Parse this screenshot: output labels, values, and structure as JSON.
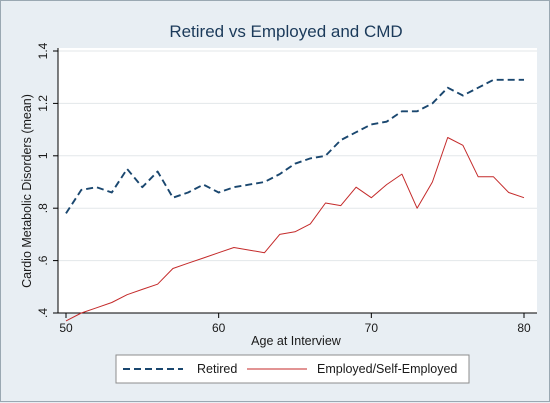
{
  "chart_data": {
    "type": "line",
    "title": "Retired vs Employed and CMD",
    "xlabel": "Age at Interview",
    "ylabel": "Cardio Metabolic Disorders (mean)",
    "xlim": [
      50,
      80
    ],
    "ylim": [
      0.4,
      1.4
    ],
    "xticks": [
      50,
      60,
      70,
      80
    ],
    "xtick_labels": [
      "50",
      "60",
      "70",
      "80"
    ],
    "yticks": [
      0.4,
      0.6,
      0.8,
      1.0,
      1.2,
      1.4
    ],
    "ytick_labels": [
      ".4",
      ".6",
      ".8",
      "1",
      "1.2",
      "1.4"
    ],
    "grid": true,
    "legend_position": "bottom",
    "x": [
      50,
      51,
      52,
      53,
      54,
      55,
      56,
      57,
      58,
      59,
      60,
      61,
      62,
      63,
      64,
      65,
      66,
      67,
      68,
      69,
      70,
      71,
      72,
      73,
      74,
      75,
      76,
      77,
      78,
      79,
      80
    ],
    "series": [
      {
        "name": "Retired",
        "style": "dashed",
        "color": "#1a476f",
        "values": [
          0.78,
          0.87,
          0.88,
          0.86,
          0.95,
          0.88,
          0.94,
          0.84,
          0.86,
          0.89,
          0.86,
          0.88,
          0.89,
          0.9,
          0.93,
          0.97,
          0.99,
          1.0,
          1.06,
          1.09,
          1.12,
          1.13,
          1.17,
          1.17,
          1.2,
          1.26,
          1.23,
          1.26,
          1.29,
          1.29,
          1.29
        ]
      },
      {
        "name": "Employed/Self-Employed",
        "style": "solid",
        "color": "#c42a2a",
        "values": [
          0.37,
          0.4,
          0.42,
          0.44,
          0.47,
          0.49,
          0.51,
          0.57,
          0.59,
          0.61,
          0.63,
          0.65,
          0.64,
          0.63,
          0.7,
          0.71,
          0.74,
          0.82,
          0.81,
          0.88,
          0.84,
          0.89,
          0.93,
          0.8,
          0.9,
          1.07,
          1.04,
          0.92,
          0.92,
          0.86,
          0.84
        ]
      }
    ]
  }
}
